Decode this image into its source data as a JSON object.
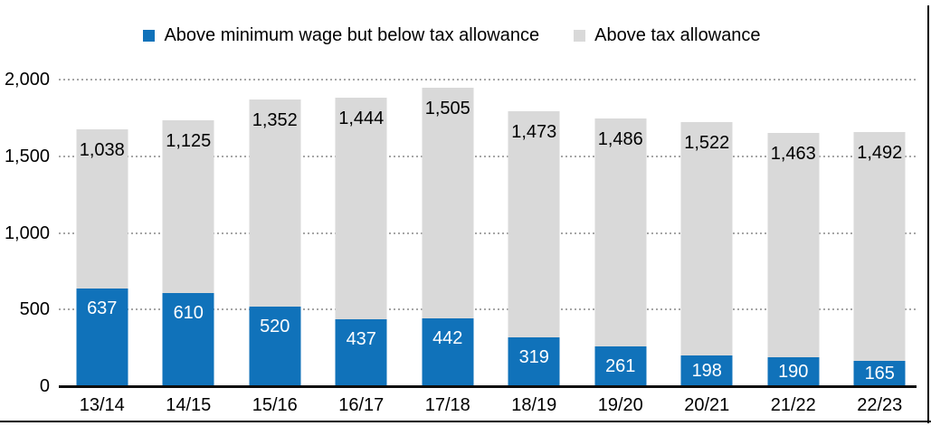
{
  "chart_data": {
    "type": "bar",
    "stacked": true,
    "title": "",
    "categories": [
      "13/14",
      "14/15",
      "15/16",
      "16/17",
      "17/18",
      "18/19",
      "19/20",
      "20/21",
      "21/22",
      "22/23"
    ],
    "series": [
      {
        "name": "Above minimum wage but below tax allowance",
        "color": "#1072ba",
        "label_color": "#ffffff",
        "values": [
          637,
          610,
          520,
          437,
          442,
          319,
          261,
          198,
          190,
          165
        ]
      },
      {
        "name": "Above tax allowance",
        "color": "#d9d9d9",
        "label_color": "#000000",
        "values": [
          1038,
          1125,
          1352,
          1444,
          1505,
          1473,
          1486,
          1522,
          1463,
          1492
        ]
      }
    ],
    "data_labels": true,
    "xlabel": "",
    "ylabel": "",
    "ylim": [
      0,
      2000
    ],
    "y_ticks": [
      {
        "value": 0,
        "label": "0"
      },
      {
        "value": 500,
        "label": "500"
      },
      {
        "value": 1000,
        "label": "1,000"
      },
      {
        "value": 1500,
        "label": "1,500"
      },
      {
        "value": 2000,
        "label": "2,000"
      }
    ],
    "gridlines": "dotted-horizontal",
    "legend_position": "top"
  },
  "colors": {
    "background": "#ffffff",
    "axis_line": "#0d0d0d",
    "gridline": "#a6a6a6",
    "frame_border": "#000000"
  }
}
